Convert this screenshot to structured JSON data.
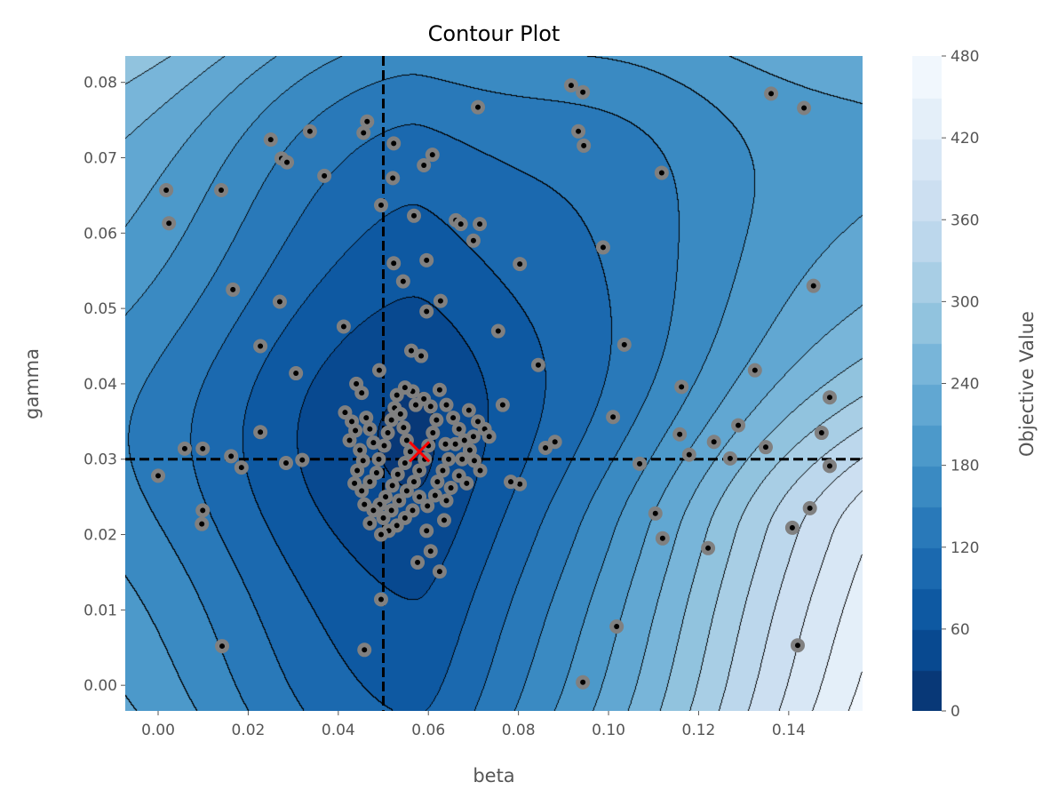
{
  "chart_data": {
    "type": "contour",
    "title": "Contour Plot",
    "xlabel": "beta",
    "ylabel": "gamma",
    "colorbar_label": "Objective Value",
    "xlim": [
      -0.0073,
      0.1564
    ],
    "ylim": [
      -0.0034,
      0.0835
    ],
    "xticks": [
      "0.00",
      "0.02",
      "0.04",
      "0.06",
      "0.08",
      "0.10",
      "0.12",
      "0.14"
    ],
    "yticks": [
      "0.00",
      "0.01",
      "0.02",
      "0.03",
      "0.04",
      "0.05",
      "0.06",
      "0.07",
      "0.08"
    ],
    "colorbar_range": [
      0,
      480
    ],
    "colorbar_step": 30,
    "colorbar_ticks": [
      "0",
      "60",
      "120",
      "180",
      "240",
      "300",
      "360",
      "420",
      "480"
    ],
    "colormap": "Blues_r",
    "colors": {
      "low": "#08306b",
      "high": "#f7fbff",
      "best_marker": "#ff0000",
      "point_fill": "#808080",
      "point_center": "#000000"
    },
    "best_point": {
      "beta": 0.058,
      "gamma": 0.031
    },
    "reference_lines": {
      "beta": 0.05,
      "gamma": 0.03
    },
    "points": [
      [
        0.0018,
        0.0657
      ],
      [
        0.0024,
        0.0613
      ],
      [
        0.0,
        0.0278
      ],
      [
        0.0059,
        0.0314
      ],
      [
        0.0099,
        0.0314
      ],
      [
        0.0099,
        0.0232
      ],
      [
        0.0097,
        0.0214
      ],
      [
        0.014,
        0.0657
      ],
      [
        0.0166,
        0.0525
      ],
      [
        0.0162,
        0.0304
      ],
      [
        0.0185,
        0.0289
      ],
      [
        0.0142,
        0.0052
      ],
      [
        0.025,
        0.0724
      ],
      [
        0.0274,
        0.0699
      ],
      [
        0.0286,
        0.0694
      ],
      [
        0.027,
        0.0509
      ],
      [
        0.0227,
        0.045
      ],
      [
        0.0227,
        0.0336
      ],
      [
        0.0284,
        0.0295
      ],
      [
        0.0306,
        0.0414
      ],
      [
        0.032,
        0.0299
      ],
      [
        0.0337,
        0.0735
      ],
      [
        0.0369,
        0.0676
      ],
      [
        0.0412,
        0.0476
      ],
      [
        0.0458,
        0.0047
      ],
      [
        0.0464,
        0.0748
      ],
      [
        0.0456,
        0.0733
      ],
      [
        0.0495,
        0.0637
      ],
      [
        0.0495,
        0.0114
      ],
      [
        0.0523,
        0.0719
      ],
      [
        0.0521,
        0.0673
      ],
      [
        0.0568,
        0.0623
      ],
      [
        0.059,
        0.069
      ],
      [
        0.0609,
        0.0704
      ],
      [
        0.0596,
        0.0564
      ],
      [
        0.0596,
        0.0496
      ],
      [
        0.0523,
        0.056
      ],
      [
        0.0544,
        0.0536
      ],
      [
        0.0627,
        0.051
      ],
      [
        0.0661,
        0.0617
      ],
      [
        0.0672,
        0.0612
      ],
      [
        0.07,
        0.059
      ],
      [
        0.0714,
        0.0612
      ],
      [
        0.071,
        0.0767
      ],
      [
        0.0803,
        0.0559
      ],
      [
        0.0755,
        0.047
      ],
      [
        0.0765,
        0.0372
      ],
      [
        0.0844,
        0.0425
      ],
      [
        0.086,
        0.0315
      ],
      [
        0.0881,
        0.0323
      ],
      [
        0.0917,
        0.0796
      ],
      [
        0.0943,
        0.0787
      ],
      [
        0.0933,
        0.0735
      ],
      [
        0.0945,
        0.0716
      ],
      [
        0.0988,
        0.0581
      ],
      [
        0.101,
        0.0356
      ],
      [
        0.1035,
        0.0452
      ],
      [
        0.1018,
        0.0078
      ],
      [
        0.0943,
        0.0004
      ],
      [
        0.1069,
        0.0294
      ],
      [
        0.1104,
        0.0228
      ],
      [
        0.112,
        0.0195
      ],
      [
        0.1118,
        0.068
      ],
      [
        0.1162,
        0.0396
      ],
      [
        0.1158,
        0.0333
      ],
      [
        0.1179,
        0.0306
      ],
      [
        0.1234,
        0.0323
      ],
      [
        0.1221,
        0.0182
      ],
      [
        0.127,
        0.0301
      ],
      [
        0.1288,
        0.0345
      ],
      [
        0.1325,
        0.0418
      ],
      [
        0.1349,
        0.0316
      ],
      [
        0.1361,
        0.0785
      ],
      [
        0.1434,
        0.0766
      ],
      [
        0.1455,
        0.053
      ],
      [
        0.1408,
        0.0209
      ],
      [
        0.1473,
        0.0335
      ],
      [
        0.1491,
        0.0382
      ],
      [
        0.1491,
        0.0291
      ],
      [
        0.1447,
        0.0235
      ],
      [
        0.142,
        0.0053
      ],
      [
        0.0605,
        0.0178
      ],
      [
        0.0576,
        0.0163
      ],
      [
        0.0625,
        0.0151
      ],
      [
        0.0596,
        0.0205
      ],
      [
        0.0635,
        0.0219
      ],
      [
        0.0803,
        0.0267
      ],
      [
        0.0783,
        0.027
      ],
      [
        0.0562,
        0.0444
      ],
      [
        0.0584,
        0.0437
      ],
      [
        0.0491,
        0.0418
      ],
      [
        0.044,
        0.04
      ],
      [
        0.0452,
        0.0388
      ],
      [
        0.0415,
        0.0362
      ],
      [
        0.043,
        0.035
      ],
      [
        0.0438,
        0.0338
      ],
      [
        0.0425,
        0.0325
      ],
      [
        0.0448,
        0.0312
      ],
      [
        0.0462,
        0.0355
      ],
      [
        0.047,
        0.034
      ],
      [
        0.0478,
        0.0322
      ],
      [
        0.0455,
        0.0298
      ],
      [
        0.0442,
        0.0285
      ],
      [
        0.0436,
        0.0268
      ],
      [
        0.0452,
        0.0258
      ],
      [
        0.047,
        0.027
      ],
      [
        0.0485,
        0.0282
      ],
      [
        0.049,
        0.03
      ],
      [
        0.0502,
        0.0318
      ],
      [
        0.051,
        0.0335
      ],
      [
        0.0518,
        0.0352
      ],
      [
        0.0525,
        0.0368
      ],
      [
        0.0538,
        0.036
      ],
      [
        0.0545,
        0.0342
      ],
      [
        0.0552,
        0.0325
      ],
      [
        0.056,
        0.031
      ],
      [
        0.0548,
        0.0295
      ],
      [
        0.0532,
        0.028
      ],
      [
        0.052,
        0.0265
      ],
      [
        0.0505,
        0.025
      ],
      [
        0.0492,
        0.024
      ],
      [
        0.0478,
        0.0232
      ],
      [
        0.05,
        0.0222
      ],
      [
        0.0518,
        0.0232
      ],
      [
        0.0535,
        0.0245
      ],
      [
        0.0552,
        0.0258
      ],
      [
        0.0568,
        0.027
      ],
      [
        0.058,
        0.0285
      ],
      [
        0.0592,
        0.03
      ],
      [
        0.06,
        0.0318
      ],
      [
        0.061,
        0.0335
      ],
      [
        0.0618,
        0.0352
      ],
      [
        0.0605,
        0.037
      ],
      [
        0.059,
        0.038
      ],
      [
        0.0572,
        0.0372
      ],
      [
        0.0565,
        0.039
      ],
      [
        0.0548,
        0.0395
      ],
      [
        0.053,
        0.0385
      ],
      [
        0.0625,
        0.0392
      ],
      [
        0.064,
        0.0372
      ],
      [
        0.0655,
        0.0355
      ],
      [
        0.0668,
        0.034
      ],
      [
        0.068,
        0.0325
      ],
      [
        0.0692,
        0.0312
      ],
      [
        0.0702,
        0.0298
      ],
      [
        0.0715,
        0.0285
      ],
      [
        0.0725,
        0.034
      ],
      [
        0.0735,
        0.033
      ],
      [
        0.069,
        0.0365
      ],
      [
        0.0645,
        0.03
      ],
      [
        0.0632,
        0.0285
      ],
      [
        0.062,
        0.027
      ],
      [
        0.065,
        0.0262
      ],
      [
        0.0668,
        0.0278
      ],
      [
        0.0685,
        0.0268
      ],
      [
        0.064,
        0.0245
      ],
      [
        0.0615,
        0.0252
      ],
      [
        0.0598,
        0.0238
      ],
      [
        0.058,
        0.025
      ],
      [
        0.0565,
        0.0232
      ],
      [
        0.0548,
        0.0222
      ],
      [
        0.053,
        0.0212
      ],
      [
        0.0512,
        0.0205
      ],
      [
        0.0495,
        0.02
      ],
      [
        0.047,
        0.0215
      ],
      [
        0.0458,
        0.024
      ],
      [
        0.0675,
        0.03
      ],
      [
        0.07,
        0.033
      ],
      [
        0.071,
        0.035
      ],
      [
        0.066,
        0.032
      ],
      [
        0.0638,
        0.032
      ]
    ]
  }
}
